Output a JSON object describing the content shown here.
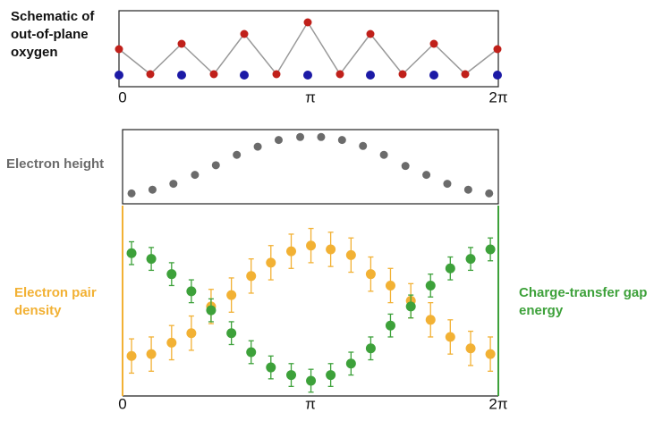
{
  "chart_data": [
    {
      "type": "schematic",
      "title": "Schematic of out-of-plane oxygen",
      "xlim": [
        0,
        6.2832
      ],
      "xticks": [
        0,
        {
          "value": 3.1416,
          "label": "π"
        },
        {
          "value": 6.2832,
          "label": "2π"
        }
      ]
    },
    {
      "type": "scatter",
      "ylabel": "Electron height",
      "color": "#6b6b6b",
      "x": [
        0.15,
        0.5,
        0.85,
        1.21,
        1.56,
        1.91,
        2.26,
        2.61,
        2.97,
        3.32,
        3.67,
        4.02,
        4.37,
        4.73,
        5.08,
        5.43,
        5.78,
        6.13
      ],
      "values": [
        0.14,
        0.19,
        0.27,
        0.39,
        0.52,
        0.66,
        0.77,
        0.86,
        0.9,
        0.9,
        0.86,
        0.78,
        0.66,
        0.51,
        0.39,
        0.27,
        0.19,
        0.14
      ],
      "xlim": [
        0,
        6.2832
      ],
      "ylim": [
        0,
        1
      ]
    },
    {
      "type": "errorbar",
      "x": [
        0.15,
        0.48,
        0.82,
        1.15,
        1.48,
        1.82,
        2.15,
        2.48,
        2.82,
        3.15,
        3.48,
        3.82,
        4.15,
        4.48,
        4.82,
        5.15,
        5.48,
        5.82,
        6.15
      ],
      "series": [
        {
          "name": "Electron pair density",
          "color": "#f2b134",
          "values": [
            0.21,
            0.22,
            0.28,
            0.33,
            0.47,
            0.53,
            0.63,
            0.7,
            0.76,
            0.79,
            0.77,
            0.74,
            0.64,
            0.58,
            0.5,
            0.4,
            0.31,
            0.25,
            0.22
          ],
          "errors": [
            0.09,
            0.09,
            0.09,
            0.09,
            0.09,
            0.09,
            0.09,
            0.09,
            0.09,
            0.09,
            0.09,
            0.09,
            0.09,
            0.09,
            0.09,
            0.09,
            0.09,
            0.09,
            0.09
          ]
        },
        {
          "name": "Charge-transfer gap energy",
          "color": "#3da13a",
          "values": [
            0.75,
            0.72,
            0.64,
            0.55,
            0.45,
            0.33,
            0.23,
            0.15,
            0.11,
            0.08,
            0.11,
            0.17,
            0.25,
            0.37,
            0.47,
            0.58,
            0.67,
            0.72,
            0.77
          ],
          "errors": [
            0.06,
            0.06,
            0.06,
            0.06,
            0.06,
            0.06,
            0.06,
            0.06,
            0.06,
            0.06,
            0.06,
            0.06,
            0.06,
            0.06,
            0.06,
            0.06,
            0.06,
            0.06,
            0.06
          ]
        }
      ],
      "xlim": [
        0,
        6.2832
      ],
      "ylim": [
        0,
        1
      ],
      "xticks": [
        0,
        {
          "value": 3.1416,
          "label": "π"
        },
        {
          "value": 6.2832,
          "label": "2π"
        }
      ]
    }
  ]
}
